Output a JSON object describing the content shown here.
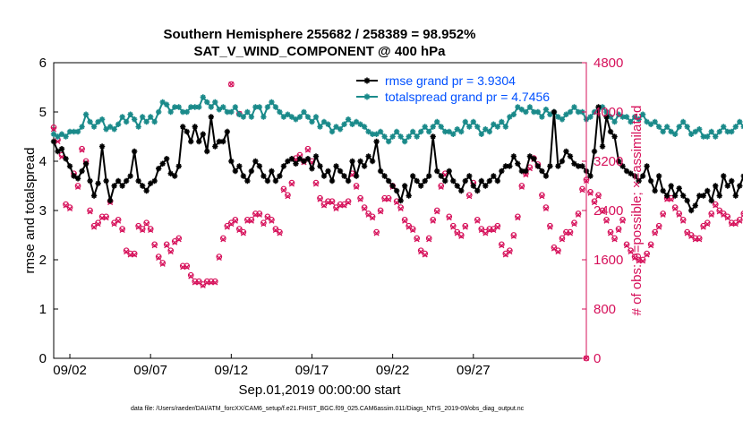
{
  "chart_data": {
    "type": "line",
    "title": "Southern Hemisphere 255682 / 258389 = 98.952%",
    "subtitle": "SAT_V_WIND_COMPONENT @ 400 hPa",
    "xlabel": "Sep.01,2019 00:00:00 start",
    "ylabel_left": "rmse and totalspread",
    "ylabel_right": "# of obs: o=possible; ×=assimilated",
    "xlim": [
      0,
      33
    ],
    "ylim_left": [
      0,
      6
    ],
    "ylim_right": [
      0,
      4800
    ],
    "x_ticks": [
      {
        "x": 1,
        "label": "09/02"
      },
      {
        "x": 6,
        "label": "09/07"
      },
      {
        "x": 11,
        "label": "09/12"
      },
      {
        "x": 16,
        "label": "09/17"
      },
      {
        "x": 21,
        "label": "09/22"
      },
      {
        "x": 26,
        "label": "09/27"
      }
    ],
    "y_ticks_left": [
      "0",
      "1",
      "2",
      "3",
      "4",
      "5",
      "6"
    ],
    "y_ticks_right": [
      "0",
      "800",
      "1600",
      "2400",
      "3200",
      "4000",
      "4800"
    ],
    "footnote": "data file: /Users/raeder/DAI/ATM_forcXX/CAM6_setup/f.e21.FHIST_BGC.f09_025.CAM6assim.011/Diags_NTrS_2019-09/obs_diag_output.nc",
    "colors": {
      "rmse": "#000000",
      "totalspread": "#1a8a8a",
      "obs_count": "#d6105a",
      "legend_text": "#0050ff"
    },
    "series": [
      {
        "name": "rmse grand pr = 3.9304",
        "axis": "left",
        "marker": "star",
        "color": "#000000",
        "x0": 0.0,
        "dx": 0.25,
        "values": [
          4.4,
          4.2,
          4.25,
          4.05,
          3.9,
          3.7,
          3.65,
          3.8,
          3.95,
          3.6,
          3.3,
          3.55,
          4.3,
          3.6,
          3.2,
          3.5,
          3.6,
          3.5,
          3.6,
          3.7,
          4.2,
          3.6,
          3.5,
          3.4,
          3.55,
          3.6,
          3.85,
          3.95,
          4.05,
          3.75,
          3.7,
          3.9,
          4.7,
          4.6,
          4.4,
          4.7,
          4.4,
          4.55,
          4.2,
          4.9,
          4.3,
          4.4,
          4.4,
          4.6,
          4.0,
          3.8,
          3.9,
          3.7,
          3.6,
          3.8,
          4.0,
          3.9,
          3.7,
          3.6,
          3.8,
          3.6,
          3.7,
          3.9,
          4.0,
          4.05,
          3.95,
          4.05,
          4.0,
          4.05,
          3.85,
          4.1,
          3.9,
          3.7,
          3.8,
          3.6,
          3.9,
          3.8,
          3.7,
          3.6,
          4.0,
          3.7,
          4.0,
          3.9,
          4.1,
          4.0,
          4.4,
          3.8,
          3.7,
          3.6,
          3.5,
          3.4,
          3.2,
          3.5,
          3.3,
          3.7,
          3.6,
          3.5,
          3.6,
          3.7,
          4.5,
          3.8,
          3.7,
          3.6,
          3.8,
          3.6,
          3.5,
          3.4,
          3.6,
          3.7,
          3.5,
          3.4,
          3.6,
          3.5,
          3.6,
          3.7,
          3.6,
          3.8,
          3.9,
          3.9,
          4.1,
          3.95,
          3.8,
          3.8,
          4.1,
          4.05,
          3.9,
          3.8,
          3.7,
          3.9,
          5.0,
          3.9,
          4.0,
          4.2,
          4.1,
          3.95,
          3.9,
          3.9,
          3.8,
          3.7,
          4.2,
          5.1,
          4.3,
          4.9,
          4.6,
          4.5,
          4.0,
          3.9,
          3.8,
          3.75,
          3.7,
          3.6,
          3.7,
          3.9,
          3.6,
          3.4,
          3.7,
          3.4,
          3.3,
          3.5,
          3.3,
          3.45,
          3.3,
          3.2,
          3.0,
          3.1,
          3.3,
          3.3,
          3.4,
          3.2,
          3.5,
          3.3,
          3.7,
          3.5,
          3.6,
          3.3,
          3.5,
          3.7
        ]
      },
      {
        "name": "totalspread grand pr = 4.7456",
        "axis": "left",
        "marker": "star",
        "color": "#1a8a8a",
        "x0": 0.0,
        "dx": 0.25,
        "values": [
          4.55,
          4.5,
          4.55,
          4.5,
          4.6,
          4.6,
          4.6,
          4.7,
          4.95,
          4.8,
          4.7,
          4.8,
          4.85,
          4.65,
          4.7,
          4.65,
          4.75,
          4.9,
          4.8,
          4.95,
          4.85,
          4.7,
          4.9,
          4.8,
          4.9,
          4.8,
          5.0,
          5.2,
          5.15,
          5.0,
          5.1,
          5.1,
          5.0,
          5.0,
          5.1,
          5.1,
          5.1,
          5.3,
          5.2,
          5.1,
          5.2,
          5.05,
          5.1,
          5.0,
          5.0,
          5.1,
          4.95,
          4.9,
          5.0,
          4.9,
          5.1,
          5.1,
          4.9,
          5.1,
          5.2,
          5.1,
          5.0,
          4.9,
          4.95,
          4.9,
          4.85,
          4.9,
          5.0,
          4.9,
          4.8,
          4.9,
          4.7,
          4.8,
          4.75,
          4.6,
          4.7,
          4.65,
          4.75,
          4.85,
          4.75,
          4.8,
          4.75,
          4.7,
          4.6,
          4.55,
          4.55,
          4.6,
          4.5,
          4.4,
          4.5,
          4.6,
          4.5,
          4.4,
          4.5,
          4.6,
          4.5,
          4.6,
          4.7,
          4.6,
          4.7,
          4.8,
          4.7,
          4.6,
          4.6,
          4.55,
          4.65,
          4.6,
          4.8,
          4.7,
          4.8,
          4.7,
          4.55,
          4.65,
          4.6,
          4.75,
          4.7,
          4.8,
          4.7,
          4.9,
          4.95,
          5.1,
          5.05,
          5.0,
          5.1,
          5.0,
          5.0,
          4.9,
          5.05,
          4.95,
          5.0,
          4.9,
          4.85,
          4.95,
          5.0,
          5.1,
          5.0,
          5.0,
          4.85,
          4.9,
          5.0,
          5.05,
          5.1,
          5.0,
          4.9,
          4.8,
          4.95,
          4.9,
          4.9,
          4.8,
          4.9,
          4.85,
          4.95,
          4.8,
          4.75,
          4.8,
          4.7,
          4.6,
          4.7,
          4.6,
          4.55,
          4.7,
          4.8,
          4.7,
          4.55,
          4.6,
          4.65,
          4.5,
          4.5,
          4.6,
          4.5,
          4.6,
          4.7,
          4.6,
          4.6,
          4.7,
          4.8,
          4.7,
          4.75,
          4.6,
          4.65
        ]
      },
      {
        "name": "obs_possible",
        "axis": "right",
        "marker": "circle",
        "color": "#d6105a",
        "x0": 0.0,
        "dx": 0.25,
        "values": [
          3750,
          3550,
          3300,
          2500,
          2450,
          3000,
          2800,
          3400,
          3200,
          2400,
          2150,
          2200,
          2300,
          2300,
          2550,
          2200,
          2250,
          2100,
          1750,
          1700,
          1700,
          2150,
          2100,
          2200,
          2100,
          1850,
          1650,
          1550,
          1850,
          1750,
          1900,
          1950,
          1500,
          1500,
          1350,
          1250,
          1250,
          1200,
          1250,
          1250,
          1250,
          1650,
          1950,
          2150,
          2200,
          2250,
          2100,
          2050,
          2250,
          2250,
          2350,
          2350,
          2200,
          2300,
          2250,
          2100,
          2050,
          2750,
          2650,
          2850,
          3250,
          3300,
          3200,
          3400,
          3200,
          2850,
          2600,
          2500,
          2550,
          2550,
          2450,
          2500,
          2500,
          2550,
          3000,
          2800,
          2600,
          2450,
          2350,
          2300,
          2050,
          2400,
          2600,
          2600,
          2800,
          2550,
          2450,
          2250,
          2150,
          2100,
          1950,
          1750,
          1700,
          1950,
          2250,
          2400,
          2800,
          3000,
          2300,
          2150,
          2050,
          2000,
          2150,
          2650,
          2850,
          2250,
          2100,
          2050,
          2100,
          2100,
          2150,
          1850,
          1700,
          1750,
          2000,
          2300,
          2800,
          3000,
          3100,
          3250,
          3150,
          2650,
          2450,
          2150,
          1800,
          1750,
          1950,
          2050,
          2050,
          2200,
          2350,
          2750,
          2900,
          2700,
          2550,
          2650,
          2400,
          2250,
          2050,
          1950,
          2100,
          2250,
          1850,
          1750,
          1650,
          1600,
          1600,
          1700,
          1850,
          2050,
          2150,
          2350,
          2600,
          2600,
          2450,
          2350,
          2250,
          2050,
          2000,
          1950,
          1950,
          2150,
          2200,
          2350,
          2500,
          2400,
          2350,
          2300,
          2200,
          2200,
          2250,
          2350,
          2500,
          2500,
          2300,
          2200,
          2050,
          2100
        ]
      },
      {
        "name": "obs_assimilated",
        "axis": "right",
        "marker": "x",
        "color": "#d6105a",
        "x0": 0.0,
        "dx": 0.25,
        "values": [
          3720,
          3520,
          3270,
          2480,
          2430,
          2980,
          2780,
          3380,
          3180,
          2380,
          2130,
          2180,
          2280,
          2280,
          2530,
          2180,
          2230,
          2080,
          1730,
          1680,
          1680,
          2130,
          2080,
          2180,
          2080,
          1830,
          1630,
          1530,
          1830,
          1730,
          1880,
          1930,
          1480,
          1480,
          1330,
          1230,
          1230,
          1180,
          1230,
          1230,
          1230,
          1630,
          1930,
          2130,
          2180,
          2230,
          2080,
          2030,
          2230,
          2230,
          2330,
          2330,
          2180,
          2280,
          2230,
          2080,
          2030,
          2730,
          2630,
          2830,
          3230,
          3280,
          3180,
          3380,
          3180,
          2830,
          2580,
          2480,
          2530,
          2530,
          2430,
          2480,
          2480,
          2530,
          2980,
          2780,
          2580,
          2430,
          2330,
          2280,
          2030,
          2380,
          2580,
          2580,
          2780,
          2530,
          2430,
          2230,
          2130,
          2080,
          1930,
          1730,
          1680,
          1930,
          2230,
          2380,
          2780,
          2980,
          2280,
          2130,
          2030,
          1980,
          2130,
          2630,
          2830,
          2230,
          2080,
          2030,
          2080,
          2080,
          2130,
          1830,
          1680,
          1730,
          1980,
          2280,
          2780,
          2980,
          3080,
          3230,
          3130,
          2630,
          2430,
          2130,
          1780,
          1730,
          1930,
          2030,
          2030,
          2180,
          2330,
          2730,
          2880,
          2680,
          2530,
          2630,
          2380,
          2230,
          2030,
          1930,
          2080,
          2230,
          1830,
          1730,
          1630,
          1580,
          1580,
          1680,
          1830,
          2030,
          2130,
          2330,
          2580,
          2580,
          2430,
          2330,
          2230,
          2030,
          1980,
          1930,
          1930,
          2130,
          2180,
          2330,
          2480,
          2380,
          2330,
          2280,
          2180,
          2180,
          2230,
          2330,
          2480,
          2480,
          2280,
          2180,
          2030,
          2080
        ]
      }
    ],
    "extra_points": [
      {
        "series": "obs",
        "x": 11.0,
        "y_right": 4450
      },
      {
        "series": "obs",
        "x": 11.5,
        "y_right": 3970
      },
      {
        "series": "obs",
        "x": 33.0,
        "y_right": 0
      }
    ],
    "legend": [
      {
        "label": "rmse grand pr = 3.9304",
        "series": "rmse"
      },
      {
        "label": "totalspread grand pr = 4.7456",
        "series": "totalspread"
      }
    ],
    "legend_position": "top-right"
  }
}
